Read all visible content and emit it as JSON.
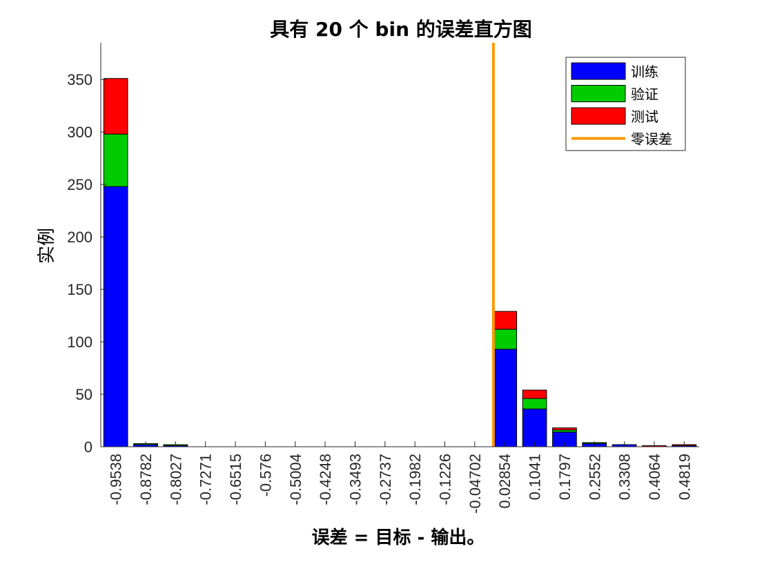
{
  "chart_data": {
    "type": "bar",
    "stacked": true,
    "title": "具有 20 个 bin 的误差直方图",
    "xlabel": "误差 = 目标 - 输出。",
    "ylabel": "实例",
    "categories": [
      "-0.9538",
      "-0.8782",
      "-0.8027",
      "-0.7271",
      "-0.6515",
      "-0.576",
      "-0.5004",
      "-0.4248",
      "-0.3493",
      "-0.2737",
      "-0.1982",
      "-0.1226",
      "-0.04702",
      "0.02854",
      "0.1041",
      "0.1797",
      "0.2552",
      "0.3308",
      "0.4064",
      "0.4819"
    ],
    "series": [
      {
        "name": "训练",
        "color": "#0000ff",
        "values": [
          248,
          2,
          1,
          0,
          0,
          0,
          0,
          0,
          0,
          0,
          0,
          0,
          0,
          93,
          36,
          14,
          3,
          2,
          0,
          1
        ]
      },
      {
        "name": "验证",
        "color": "#00cc00",
        "values": [
          50,
          1,
          1,
          0,
          0,
          0,
          0,
          0,
          0,
          0,
          0,
          0,
          0,
          19,
          10,
          2,
          1,
          0,
          0,
          0
        ]
      },
      {
        "name": "测试",
        "color": "#ff0000",
        "values": [
          53,
          0,
          0,
          0,
          0,
          0,
          0,
          0,
          0,
          0,
          0,
          0,
          0,
          17,
          8,
          2,
          0,
          0,
          1,
          1
        ]
      }
    ],
    "zero_error": {
      "name": "零误差",
      "color": "#ff9900",
      "x": 0
    },
    "ylim": [
      0,
      385
    ],
    "yticks": [
      0,
      50,
      100,
      150,
      200,
      250,
      300,
      350
    ],
    "legend_position": "top-right",
    "grid": false
  }
}
